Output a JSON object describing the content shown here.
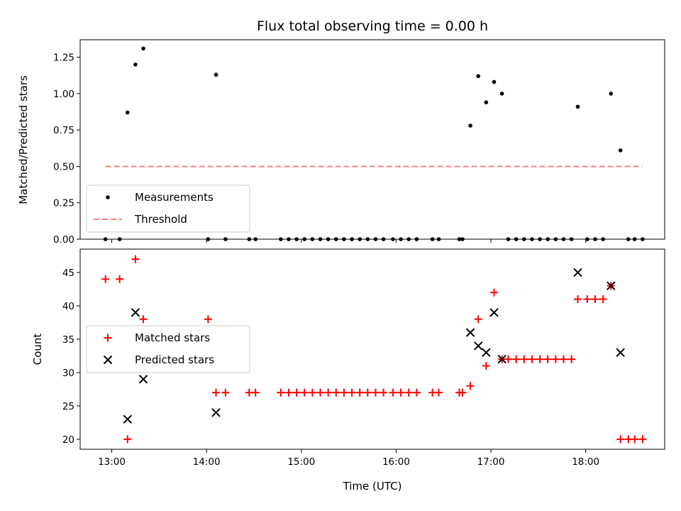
{
  "chart_data": [
    {
      "type": "scatter",
      "title": "Flux total observing time = 0.00 h",
      "xlabel": "",
      "ylabel": "Matched/Predicted stars",
      "ylim": [
        0,
        1.37
      ],
      "yticks": [
        "0.00",
        "0.25",
        "0.50",
        "0.75",
        "1.00",
        "1.25"
      ],
      "xlim": [
        "12:40",
        "18:50"
      ],
      "grid": false,
      "legend": "lower-left",
      "series": [
        {
          "name": "Measurements",
          "marker": "dot",
          "color": "#000000",
          "x": [
            "12:56",
            "13:05",
            "13:10",
            "13:15",
            "13:20",
            "14:01",
            "14:06",
            "14:12",
            "14:27",
            "14:31",
            "14:47",
            "14:52",
            "14:57",
            "15:02",
            "15:07",
            "15:12",
            "15:17",
            "15:22",
            "15:27",
            "15:32",
            "15:37",
            "15:42",
            "15:47",
            "15:52",
            "15:58",
            "16:03",
            "16:08",
            "16:13",
            "16:23",
            "16:27",
            "16:40",
            "16:42",
            "16:47",
            "16:52",
            "16:57",
            "17:02",
            "17:07",
            "17:11",
            "17:16",
            "17:21",
            "17:26",
            "17:31",
            "17:36",
            "17:41",
            "17:46",
            "17:51",
            "17:55",
            "18:01",
            "18:06",
            "18:11",
            "18:16",
            "18:22",
            "18:27",
            "18:31",
            "18:36"
          ],
          "y": [
            0,
            0,
            0.87,
            1.2,
            1.31,
            0,
            1.13,
            0,
            0,
            0,
            0,
            0,
            0,
            0,
            0,
            0,
            0,
            0,
            0,
            0,
            0,
            0,
            0,
            0,
            0,
            0,
            0,
            0,
            0,
            0,
            0,
            0,
            0.78,
            1.12,
            0.94,
            1.08,
            1.0,
            0,
            0,
            0,
            0,
            0,
            0,
            0,
            0,
            0,
            0.91,
            0,
            0,
            0,
            1.0,
            0.61,
            0,
            0,
            0
          ]
        },
        {
          "name": "Threshold",
          "style": "dashed",
          "color": "#ff7f7f",
          "x": [
            "12:56",
            "18:36"
          ],
          "y": [
            0.5,
            0.5
          ]
        }
      ]
    },
    {
      "type": "scatter",
      "title": "",
      "xlabel": "Time (UTC)",
      "ylabel": "Count",
      "ylim": [
        18.5,
        48.5
      ],
      "yticks": [
        "20",
        "25",
        "30",
        "35",
        "40",
        "45"
      ],
      "xlim": [
        "12:40",
        "18:50"
      ],
      "xticks": [
        "13:00",
        "14:00",
        "15:00",
        "16:00",
        "17:00",
        "18:00"
      ],
      "grid": false,
      "legend": "center-left",
      "series": [
        {
          "name": "Matched stars",
          "marker": "plus",
          "color": "#ff0000",
          "x": [
            "12:56",
            "13:05",
            "13:10",
            "13:15",
            "13:20",
            "14:01",
            "14:06",
            "14:12",
            "14:27",
            "14:31",
            "14:47",
            "14:52",
            "14:57",
            "15:02",
            "15:07",
            "15:12",
            "15:17",
            "15:22",
            "15:27",
            "15:32",
            "15:37",
            "15:42",
            "15:47",
            "15:52",
            "15:58",
            "16:03",
            "16:08",
            "16:13",
            "16:23",
            "16:27",
            "16:40",
            "16:42",
            "16:47",
            "16:52",
            "16:57",
            "17:02",
            "17:07",
            "17:11",
            "17:16",
            "17:21",
            "17:26",
            "17:31",
            "17:36",
            "17:41",
            "17:46",
            "17:51",
            "17:55",
            "18:01",
            "18:06",
            "18:11",
            "18:16",
            "18:22",
            "18:27",
            "18:31",
            "18:36"
          ],
          "y": [
            44,
            44,
            20,
            47,
            38,
            38,
            27,
            27,
            27,
            27,
            27,
            27,
            27,
            27,
            27,
            27,
            27,
            27,
            27,
            27,
            27,
            27,
            27,
            27,
            27,
            27,
            27,
            27,
            27,
            27,
            27,
            27,
            28,
            38,
            31,
            42,
            32,
            32,
            32,
            32,
            32,
            32,
            32,
            32,
            32,
            32,
            41,
            41,
            41,
            41,
            43,
            20,
            20,
            20,
            20
          ]
        },
        {
          "name": "Predicted stars",
          "marker": "x",
          "color": "#000000",
          "x": [
            "13:10",
            "13:15",
            "13:20",
            "14:06",
            "16:47",
            "16:52",
            "16:57",
            "17:02",
            "17:07",
            "17:55",
            "18:16",
            "18:22"
          ],
          "y": [
            23,
            39,
            29,
            24,
            36,
            34,
            33,
            39,
            32,
            45,
            43,
            33
          ]
        }
      ]
    }
  ]
}
